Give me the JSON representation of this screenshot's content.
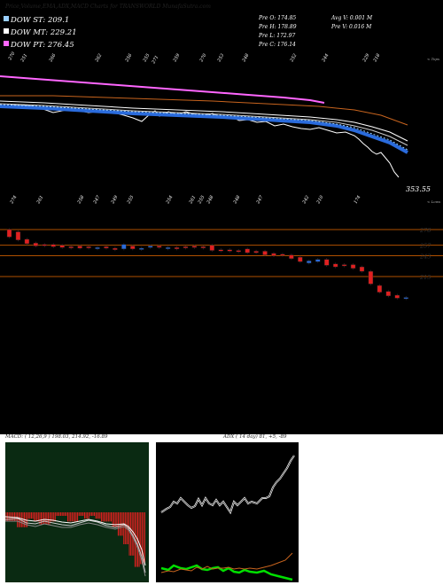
{
  "header": {
    "title": "Price,Volume,EMA,ADX,MACD Charts for TRANSWORLD MunafaSutra.com"
  },
  "legend": [
    {
      "label": "DOW ST: 209.1",
      "color": "#9ad0ff"
    },
    {
      "label": "DOW MT: 229.21",
      "color": "#ffffff"
    },
    {
      "label": "DOW PT: 276.45",
      "color": "#ff66ff"
    }
  ],
  "info": {
    "o": "Pre   O: 174.85",
    "h": "Pre   H: 178.89",
    "l": "Pre   L: 172.97",
    "c": "Pre   C: 176.14",
    "avg_v": "Avg V: 0.001 M",
    "pre_v": "Pre   V: 0.016  M"
  },
  "price_label": "353.55",
  "edge_labels": {
    "top": "< Tops",
    "low": "< Lows"
  },
  "tops_labels": [
    "270",
    "251",
    "266",
    "262",
    "256",
    "255",
    "271",
    "259",
    "270",
    "253",
    "248",
    "252",
    "244",
    "229",
    "218"
  ],
  "lows_labels": [
    "274",
    "261",
    "258",
    "247",
    "249",
    "255",
    "254",
    "261",
    "255",
    "248",
    "248",
    "247",
    "242",
    "210",
    "174"
  ],
  "levels": [
    {
      "value": "278",
      "color": "#b05000"
    },
    {
      "value": "257",
      "color": "#b05000"
    },
    {
      "value": "243",
      "color": "#b05000"
    },
    {
      "value": "215",
      "color": "#b05000"
    }
  ],
  "macd_label": "MACD: ( 12,26,9 ) 198.03, 214.92, -16.89",
  "adx_label": "ADX ( 14  day) 81, +5, -89",
  "chart_data": [
    {
      "type": "line",
      "title": "Price,Volume,EMA,ADX,MACD Charts for TRANSWORLD MunafaSutra.com",
      "series": [
        {
          "name": "DOW ST: 209.1",
          "values": [
            270,
            268,
            266,
            264,
            262,
            259,
            256,
            254,
            251,
            248,
            245,
            242,
            239,
            236,
            233,
            229,
            224,
            218,
            209
          ]
        },
        {
          "name": "DOW MT: 229.21",
          "values": [
            262,
            261,
            260,
            258,
            257,
            256,
            254,
            253,
            251,
            249,
            247,
            245,
            243,
            241,
            239,
            236,
            233,
            231,
            229
          ]
        },
        {
          "name": "DOW PT: 276.45",
          "values": [
            300,
            299,
            298,
            297,
            296,
            294,
            293,
            292,
            291,
            290,
            289,
            288,
            287,
            286,
            284,
            283,
            281,
            279,
            276
          ]
        }
      ],
      "tops": [
        "270",
        "251",
        "266",
        "262",
        "256",
        "255",
        "271",
        "259",
        "270",
        "253",
        "248",
        "252",
        "244",
        "229",
        "218"
      ],
      "lows": [
        "274",
        "261",
        "258",
        "247",
        "249",
        "255",
        "254",
        "261",
        "255",
        "248",
        "248",
        "247",
        "242",
        "210",
        "174"
      ]
    },
    {
      "type": "candlestick",
      "levels": [
        278,
        257,
        243,
        215
      ],
      "candles": [
        {
          "o": 278,
          "c": 268
        },
        {
          "o": 275,
          "c": 264
        },
        {
          "o": 265,
          "c": 259
        },
        {
          "o": 260,
          "c": 256
        },
        {
          "o": 258,
          "c": 257
        },
        {
          "o": 258,
          "c": 255
        },
        {
          "o": 257,
          "c": 254
        },
        {
          "o": 255,
          "c": 254
        },
        {
          "o": 256,
          "c": 253
        },
        {
          "o": 255,
          "c": 254
        },
        {
          "o": 254,
          "c": 254
        },
        {
          "o": 255,
          "c": 253
        },
        {
          "o": 253,
          "c": 251
        },
        {
          "o": 252,
          "c": 258
        },
        {
          "o": 256,
          "c": 252
        },
        {
          "o": 252,
          "c": 253
        },
        {
          "o": 254,
          "c": 256
        },
        {
          "o": 256,
          "c": 254
        },
        {
          "o": 253,
          "c": 254
        },
        {
          "o": 254,
          "c": 252
        },
        {
          "o": 255,
          "c": 254
        },
        {
          "o": 256,
          "c": 254
        },
        {
          "o": 255,
          "c": 254
        },
        {
          "o": 257,
          "c": 250
        },
        {
          "o": 251,
          "c": 250
        },
        {
          "o": 251,
          "c": 249
        },
        {
          "o": 250,
          "c": 249
        },
        {
          "o": 252,
          "c": 247
        },
        {
          "o": 249,
          "c": 247
        },
        {
          "o": 249,
          "c": 244
        },
        {
          "o": 246,
          "c": 243
        },
        {
          "o": 245,
          "c": 244
        },
        {
          "o": 244,
          "c": 239
        },
        {
          "o": 241,
          "c": 235
        },
        {
          "o": 233,
          "c": 236
        },
        {
          "o": 235,
          "c": 238
        },
        {
          "o": 238,
          "c": 230
        },
        {
          "o": 232,
          "c": 228
        },
        {
          "o": 231,
          "c": 230
        },
        {
          "o": 231,
          "c": 226
        },
        {
          "o": 228,
          "c": 222
        },
        {
          "o": 222,
          "c": 205
        },
        {
          "o": 203,
          "c": 194
        },
        {
          "o": 195,
          "c": 189
        },
        {
          "o": 190,
          "c": 186
        },
        {
          "o": 187,
          "c": 187
        }
      ]
    },
    {
      "type": "line",
      "title": "MACD: ( 12,26,9 ) 198.03, 214.92, -16.89",
      "series": [
        {
          "name": "MACD",
          "values": [
            262,
            261,
            258,
            257,
            259,
            258,
            256,
            255,
            256,
            258,
            257,
            255,
            254,
            256,
            257,
            255,
            254,
            252,
            250,
            246,
            240,
            232,
            222,
            210,
            198
          ]
        },
        {
          "name": "Signal",
          "values": [
            264,
            263,
            262,
            261,
            260,
            260,
            259,
            258,
            258,
            258,
            257,
            257,
            256,
            256,
            256,
            255,
            255,
            254,
            252,
            250,
            247,
            242,
            236,
            228,
            215
          ]
        }
      ],
      "histogram": [
        -2,
        -2,
        -4,
        -4,
        -1,
        -2,
        -3,
        -3,
        -2,
        0,
        0,
        -2,
        -2,
        0,
        1,
        0,
        -1,
        -2,
        -2,
        -4,
        -7,
        -10,
        -14,
        -18,
        -17
      ]
    },
    {
      "type": "line",
      "title": "ADX ( 14  day) 81, +5, -89",
      "series": [
        {
          "name": "ADX",
          "values": [
            27,
            28,
            30,
            30,
            31,
            32,
            29,
            27,
            24,
            29,
            29,
            32,
            30,
            30,
            28,
            30,
            30,
            30,
            33,
            41,
            49,
            61,
            72,
            81
          ]
        },
        {
          "name": "+DI",
          "values": [
            12,
            15,
            12,
            15,
            14,
            13,
            10,
            13,
            11,
            12,
            10,
            9,
            11,
            11,
            9,
            10,
            9,
            8,
            9,
            7,
            6,
            5,
            6,
            5
          ]
        },
        {
          "name": "-DI",
          "values": [
            12,
            13,
            13,
            12,
            13,
            12,
            14,
            13,
            15,
            13,
            14,
            14,
            15,
            13,
            14,
            13,
            13,
            14,
            13,
            15,
            17,
            18,
            20,
            89
          ]
        }
      ]
    }
  ]
}
